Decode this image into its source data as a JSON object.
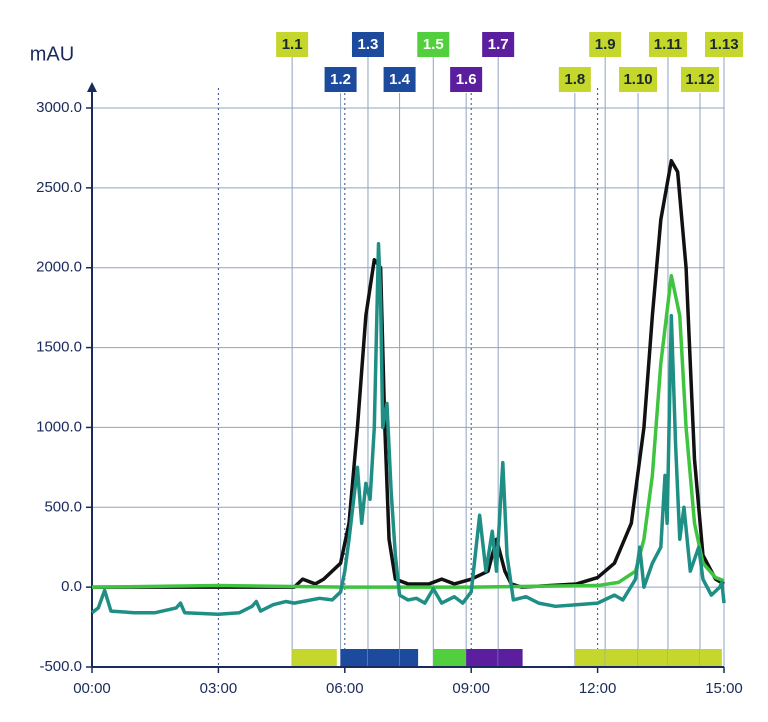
{
  "chart_data": {
    "type": "line",
    "y_label": "mAU",
    "xlim": [
      0,
      15
    ],
    "ylim": [
      -500,
      3000
    ],
    "xticks": [
      {
        "value": 0,
        "label": "00:00"
      },
      {
        "value": 3,
        "label": "03:00"
      },
      {
        "value": 6,
        "label": "06:00"
      },
      {
        "value": 9,
        "label": "09:00"
      },
      {
        "value": 12,
        "label": "12:00"
      },
      {
        "value": 15,
        "label": "15:00"
      }
    ],
    "yticks": [
      {
        "value": -500,
        "label": "-500.0"
      },
      {
        "value": 0,
        "label": "0.0"
      },
      {
        "value": 500,
        "label": "500.0"
      },
      {
        "value": 1000,
        "label": "1000.0"
      },
      {
        "value": 1500,
        "label": "1500.0"
      },
      {
        "value": 2000,
        "label": "2000.0"
      },
      {
        "value": 2500,
        "label": "2500.0"
      },
      {
        "value": 3000,
        "label": "3000.0"
      }
    ],
    "grid": true,
    "series": [
      {
        "color": "#111111",
        "x": [
          0,
          4.8,
          5.0,
          5.3,
          5.5,
          5.9,
          6.1,
          6.3,
          6.5,
          6.7,
          6.85,
          6.95,
          7.05,
          7.2,
          7.5,
          8.0,
          8.3,
          8.6,
          9.0,
          9.4,
          9.6,
          9.8,
          9.95,
          10.2,
          11.5,
          12.0,
          12.4,
          12.8,
          13.1,
          13.3,
          13.5,
          13.75,
          13.9,
          14.1,
          14.3,
          14.5,
          14.8,
          15.0
        ],
        "values": [
          0,
          0,
          50,
          20,
          50,
          150,
          400,
          1000,
          1700,
          2050,
          2000,
          1000,
          300,
          50,
          20,
          20,
          50,
          20,
          50,
          100,
          300,
          100,
          20,
          0,
          20,
          60,
          150,
          400,
          1000,
          1700,
          2300,
          2670,
          2600,
          2000,
          800,
          200,
          50,
          20
        ]
      },
      {
        "color": "#3ec43e",
        "x": [
          0,
          3,
          6,
          9,
          12,
          12.5,
          12.9,
          13.1,
          13.3,
          13.5,
          13.75,
          13.95,
          14.1,
          14.3,
          14.5,
          14.8,
          15.0
        ],
        "values": [
          0,
          10,
          0,
          0,
          10,
          30,
          100,
          300,
          700,
          1400,
          1950,
          1700,
          1000,
          400,
          150,
          60,
          40
        ]
      },
      {
        "color": "#1f8f86",
        "x": [
          0,
          0.15,
          0.3,
          0.45,
          1.0,
          1.5,
          2.0,
          2.1,
          2.2,
          3.0,
          3.5,
          3.8,
          3.9,
          4.0,
          4.3,
          4.6,
          4.8,
          5.0,
          5.4,
          5.7,
          5.9,
          6.0,
          6.1,
          6.3,
          6.4,
          6.5,
          6.6,
          6.7,
          6.8,
          6.85,
          6.9,
          7.0,
          7.1,
          7.2,
          7.3,
          7.5,
          7.7,
          7.9,
          8.1,
          8.3,
          8.6,
          8.8,
          9.0,
          9.2,
          9.35,
          9.5,
          9.6,
          9.75,
          9.85,
          10.0,
          10.3,
          10.6,
          11.0,
          11.5,
          12.0,
          12.4,
          12.6,
          12.9,
          13.0,
          13.1,
          13.3,
          13.5,
          13.6,
          13.65,
          13.75,
          13.85,
          13.95,
          14.05,
          14.2,
          14.4,
          14.5,
          14.7,
          14.9,
          14.95,
          15.0
        ],
        "values": [
          -160,
          -130,
          -20,
          -150,
          -160,
          -160,
          -130,
          -100,
          -160,
          -170,
          -160,
          -120,
          -90,
          -150,
          -110,
          -90,
          -100,
          -90,
          -70,
          -80,
          -30,
          100,
          300,
          750,
          400,
          650,
          550,
          1000,
          2150,
          1800,
          1000,
          1150,
          600,
          200,
          -50,
          -80,
          -70,
          -100,
          -10,
          -100,
          -60,
          -100,
          -30,
          450,
          100,
          350,
          100,
          780,
          200,
          -80,
          -60,
          -100,
          -120,
          -110,
          -100,
          -50,
          -80,
          50,
          250,
          0,
          150,
          250,
          700,
          400,
          1700,
          900,
          300,
          500,
          100,
          250,
          50,
          -50,
          0,
          30,
          -100
        ]
      }
    ],
    "fractions": [
      {
        "label": "1.1",
        "start": 4.75,
        "end": 5.81,
        "color": "#c5d62c"
      },
      {
        "label": "1.2",
        "start": 5.9,
        "end": 6.55,
        "color": "#1c4a9c"
      },
      {
        "label": "1.3",
        "start": 6.55,
        "end": 7.3,
        "color": "#1c4a9c"
      },
      {
        "label": "1.4",
        "start": 7.3,
        "end": 7.74,
        "color": "#1c4a9c"
      },
      {
        "label": "1.5",
        "start": 8.1,
        "end": 8.88,
        "color": "#52cf3c"
      },
      {
        "label": "1.6",
        "start": 8.88,
        "end": 9.64,
        "color": "#5a1e9e"
      },
      {
        "label": "1.7",
        "start": 9.64,
        "end": 10.22,
        "color": "#5a1e9e"
      },
      {
        "label": "1.8",
        "start": 11.46,
        "end": 12.18,
        "color": "#c5d62c"
      },
      {
        "label": "1.9",
        "start": 12.18,
        "end": 12.96,
        "color": "#c5d62c"
      },
      {
        "label": "1.10",
        "start": 12.96,
        "end": 13.67,
        "color": "#c5d62c"
      },
      {
        "label": "1.11",
        "start": 13.67,
        "end": 14.43,
        "color": "#c5d62c"
      },
      {
        "label": "1.12",
        "start": 14.43,
        "end": 14.95,
        "color": "#c5d62c"
      },
      {
        "label": "1.13",
        "start": 15.0,
        "end": 15.0,
        "color": "#c5d62c"
      }
    ]
  }
}
